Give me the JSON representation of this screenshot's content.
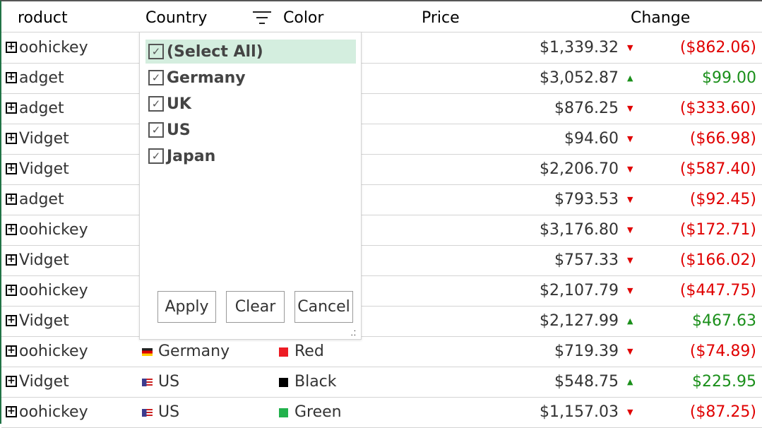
{
  "header": {
    "product": "roduct",
    "country": "Country",
    "color": "Color",
    "price": "Price",
    "change": "Change"
  },
  "rows": [
    {
      "product": "oohickey",
      "price": "$1,339.32",
      "trend": "down",
      "change": "($862.06)"
    },
    {
      "product": "adget",
      "price": "$3,052.87",
      "trend": "up",
      "change": "$99.00"
    },
    {
      "product": "adget",
      "price": "$876.25",
      "trend": "down",
      "change": "($333.60)"
    },
    {
      "product": "Vidget",
      "price": "$94.60",
      "trend": "down",
      "change": "($66.98)"
    },
    {
      "product": "Vidget",
      "price": "$2,206.70",
      "trend": "down",
      "change": "($587.40)"
    },
    {
      "product": "adget",
      "price": "$793.53",
      "trend": "down",
      "change": "($92.45)"
    },
    {
      "product": "oohickey",
      "price": "$3,176.80",
      "trend": "down",
      "change": "($172.71)"
    },
    {
      "product": "Vidget",
      "price": "$757.33",
      "trend": "down",
      "change": "($166.02)"
    },
    {
      "product": "oohickey",
      "price": "$2,107.79",
      "trend": "down",
      "change": "($447.75)"
    },
    {
      "product": "Vidget",
      "price": "$2,127.99",
      "trend": "up",
      "change": "$467.63"
    },
    {
      "product": "oohickey",
      "country": "Germany",
      "flag": "de",
      "color": "Red",
      "swatch": "#ed1c24",
      "price": "$719.39",
      "trend": "down",
      "change": "($74.89)"
    },
    {
      "product": "Vidget",
      "country": "US",
      "flag": "us",
      "color": "Black",
      "swatch": "#000000",
      "price": "$548.75",
      "trend": "up",
      "change": "$225.95"
    },
    {
      "product": "oohickey",
      "country": "US",
      "flag": "us",
      "color": "Green",
      "swatch": "#22b14c",
      "price": "$1,157.03",
      "trend": "down",
      "change": "($87.25)"
    }
  ],
  "filter": {
    "options": [
      {
        "label": "(Select All)",
        "checked": true
      },
      {
        "label": "Germany",
        "checked": true
      },
      {
        "label": "UK",
        "checked": true
      },
      {
        "label": "US",
        "checked": true
      },
      {
        "label": "Japan",
        "checked": true
      }
    ],
    "apply": "Apply",
    "clear": "Clear",
    "cancel": "Cancel"
  },
  "colors": {
    "negative": "#e00000",
    "positive": "#1a8f1a",
    "selected": "#d4eedf",
    "accent": "#217346"
  }
}
